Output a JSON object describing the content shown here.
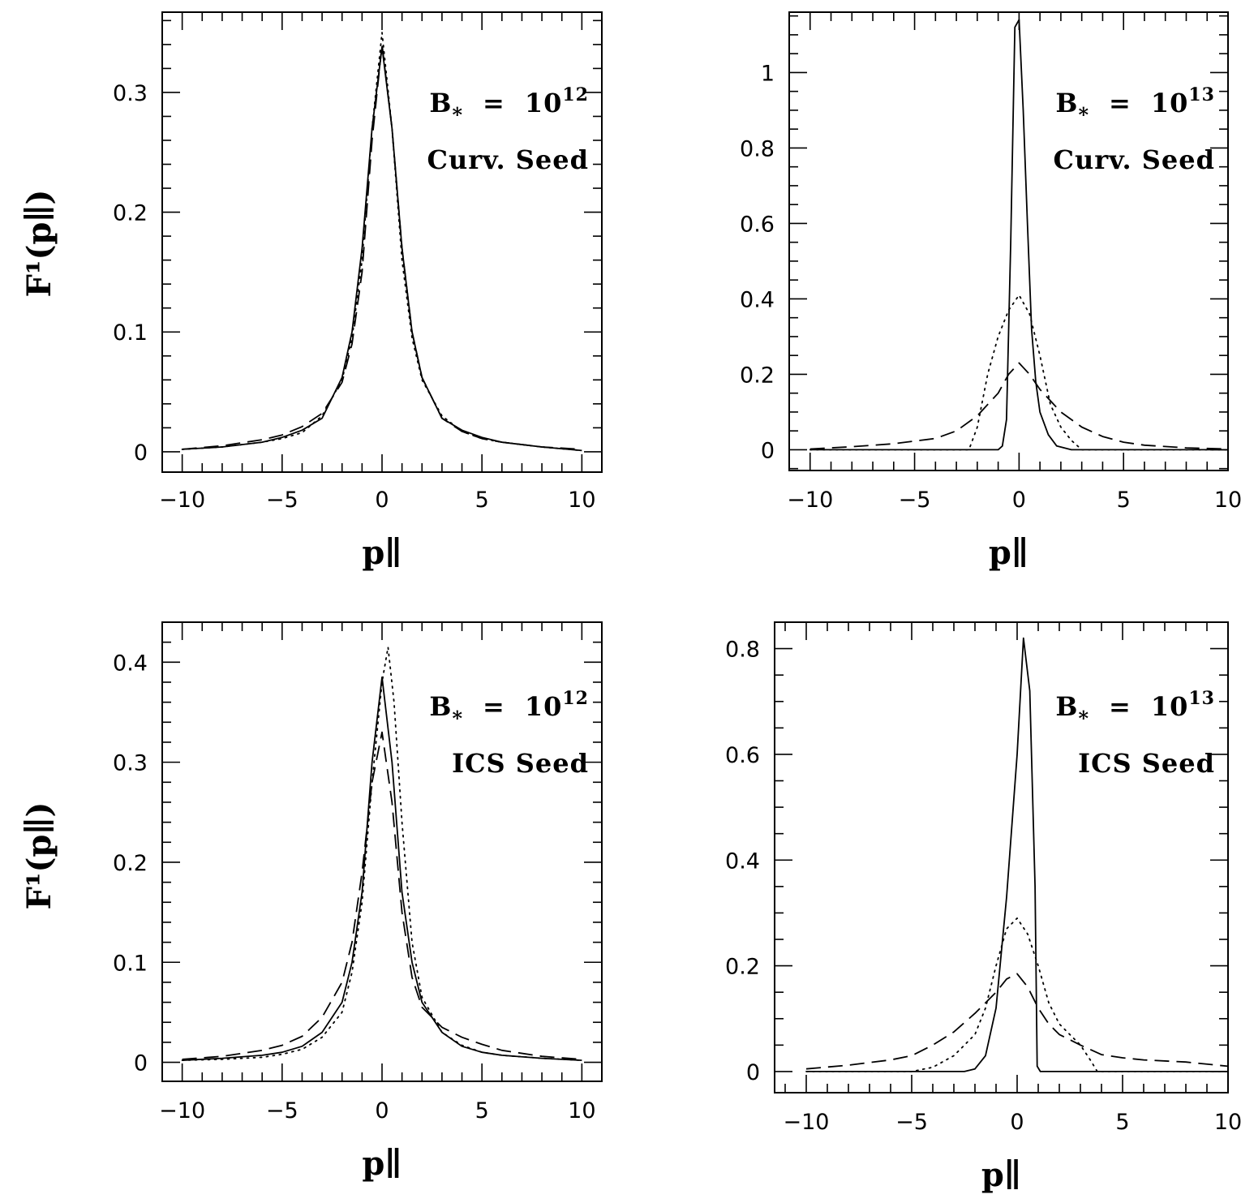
{
  "figure": {
    "ylabel": "F¹(p∥)",
    "xlabel": "p∥"
  },
  "chart_data": [
    {
      "type": "line",
      "panel": "top-left",
      "xlabel": "p∥",
      "ylabel": "F¹(p∥)",
      "xlim": [
        -11,
        11
      ],
      "ylim": [
        -0.017,
        0.367
      ],
      "xticks": [
        -10,
        -5,
        0,
        5,
        10
      ],
      "xtick_labels": [
        "−10",
        "−5",
        "0",
        "5",
        "10"
      ],
      "yticks": [
        0,
        0.1,
        0.2,
        0.3
      ],
      "ytick_labels": [
        "0",
        "0.1",
        "0.2",
        "0.3"
      ],
      "xminor": 1,
      "yminor": 0.02,
      "annotation": {
        "b_label": "B",
        "b_sub": "*",
        "equals": "=",
        "b_value": "10",
        "b_exp": "12",
        "seed": "Curv. Seed"
      },
      "series": [
        {
          "name": "solid",
          "style": "solid",
          "x": [
            -10,
            -8,
            -6,
            -5,
            -4,
            -3,
            -2,
            -1.5,
            -1,
            -0.5,
            0,
            0.5,
            1,
            1.5,
            2,
            3,
            4,
            5,
            6,
            8,
            10
          ],
          "y": [
            0.002,
            0.004,
            0.008,
            0.012,
            0.018,
            0.028,
            0.062,
            0.1,
            0.17,
            0.27,
            0.338,
            0.27,
            0.17,
            0.1,
            0.062,
            0.028,
            0.018,
            0.012,
            0.008,
            0.004,
            0.001
          ]
        },
        {
          "name": "dotted",
          "style": "dotted",
          "x": [
            -10,
            -8,
            -6,
            -5,
            -4,
            -3,
            -2,
            -1.5,
            -1,
            -0.5,
            0,
            0.5,
            1,
            1.5,
            2,
            3,
            4,
            5,
            6,
            8,
            10
          ],
          "y": [
            0.002,
            0.004,
            0.008,
            0.011,
            0.016,
            0.03,
            0.06,
            0.095,
            0.16,
            0.27,
            0.35,
            0.27,
            0.16,
            0.095,
            0.06,
            0.03,
            0.017,
            0.011,
            0.008,
            0.004,
            0.001
          ]
        },
        {
          "name": "dashed",
          "style": "dashed",
          "x": [
            -10,
            -8,
            -6,
            -5,
            -4,
            -3,
            -2,
            -1.5,
            -1,
            -0.5,
            0,
            0.5,
            1,
            1.5,
            2,
            3,
            4,
            5,
            6,
            8,
            10
          ],
          "y": [
            0.002,
            0.005,
            0.01,
            0.014,
            0.021,
            0.032,
            0.058,
            0.09,
            0.15,
            0.26,
            0.34,
            0.27,
            0.17,
            0.1,
            0.062,
            0.028,
            0.017,
            0.011,
            0.008,
            0.004,
            0.002
          ]
        }
      ]
    },
    {
      "type": "line",
      "panel": "top-right",
      "xlabel": "p∥",
      "ylabel": "",
      "xlim": [
        -11,
        10
      ],
      "ylim": [
        -0.055,
        1.16
      ],
      "xticks": [
        -10,
        -5,
        0,
        5,
        10
      ],
      "xtick_labels": [
        "−10",
        "−5",
        "0",
        "5",
        "10"
      ],
      "yticks": [
        0,
        0.2,
        0.4,
        0.6,
        0.8,
        1
      ],
      "ytick_labels": [
        "0",
        "0.2",
        "0.4",
        "0.6",
        "0.8",
        "1"
      ],
      "xminor": 1,
      "yminor": 0.05,
      "annotation": {
        "b_label": "B",
        "b_sub": "*",
        "equals": "=",
        "b_value": "10",
        "b_exp": "13",
        "seed": "Curv. Seed"
      },
      "series": [
        {
          "name": "solid",
          "style": "solid",
          "x": [
            -10,
            -1,
            -0.8,
            -0.6,
            -0.4,
            -0.2,
            0,
            0.2,
            0.4,
            0.6,
            0.8,
            1.0,
            1.4,
            1.8,
            2.5,
            10
          ],
          "y": [
            0,
            0,
            0.01,
            0.08,
            0.55,
            1.12,
            1.14,
            0.9,
            0.6,
            0.32,
            0.18,
            0.1,
            0.04,
            0.01,
            0,
            0
          ]
        },
        {
          "name": "dotted",
          "style": "dotted",
          "x": [
            -10,
            -2.4,
            -2,
            -1.5,
            -1,
            -0.5,
            0,
            0.5,
            1,
            1.5,
            2,
            2.5,
            3,
            10
          ],
          "y": [
            0,
            0,
            0.06,
            0.2,
            0.3,
            0.37,
            0.41,
            0.36,
            0.25,
            0.12,
            0.06,
            0.025,
            0,
            0
          ]
        },
        {
          "name": "dashed",
          "style": "dashed",
          "x": [
            -10,
            -8,
            -6,
            -4,
            -3,
            -2,
            -1.5,
            -1,
            -0.5,
            0,
            0.5,
            1,
            1.5,
            2,
            3,
            4,
            5,
            6,
            8,
            10
          ],
          "y": [
            0.002,
            0.008,
            0.016,
            0.03,
            0.05,
            0.09,
            0.12,
            0.15,
            0.2,
            0.23,
            0.2,
            0.16,
            0.13,
            0.1,
            0.06,
            0.035,
            0.02,
            0.012,
            0.005,
            0.002
          ]
        }
      ]
    },
    {
      "type": "line",
      "panel": "bottom-left",
      "xlabel": "p∥",
      "ylabel": "F¹(p∥)",
      "xlim": [
        -11,
        11
      ],
      "ylim": [
        -0.019,
        0.44
      ],
      "xticks": [
        -10,
        -5,
        0,
        5,
        10
      ],
      "xtick_labels": [
        "−10",
        "−5",
        "0",
        "5",
        "10"
      ],
      "yticks": [
        0,
        0.1,
        0.2,
        0.3,
        0.4
      ],
      "ytick_labels": [
        "0",
        "0.1",
        "0.2",
        "0.3",
        "0.4"
      ],
      "xminor": 1,
      "yminor": 0.02,
      "annotation": {
        "b_label": "B",
        "b_sub": "*",
        "equals": "=",
        "b_value": "10",
        "b_exp": "12",
        "seed": "ICS Seed"
      },
      "series": [
        {
          "name": "solid",
          "style": "solid",
          "x": [
            -10,
            -8,
            -6,
            -5,
            -4,
            -3,
            -2,
            -1.5,
            -1,
            -0.5,
            0,
            0.5,
            1,
            1.5,
            2,
            3,
            4,
            5,
            6,
            8,
            10
          ],
          "y": [
            0.002,
            0.004,
            0.007,
            0.01,
            0.016,
            0.03,
            0.06,
            0.1,
            0.17,
            0.3,
            0.385,
            0.3,
            0.17,
            0.1,
            0.06,
            0.03,
            0.016,
            0.01,
            0.007,
            0.004,
            0.002
          ]
        },
        {
          "name": "dotted",
          "style": "dotted",
          "x": [
            -10,
            -8,
            -6,
            -5,
            -4,
            -3,
            -2,
            -1.5,
            -1,
            -0.5,
            0,
            0.3,
            0.6,
            1,
            1.5,
            2,
            3,
            4,
            5,
            6,
            8,
            10
          ],
          "y": [
            0.002,
            0.003,
            0.005,
            0.008,
            0.013,
            0.025,
            0.05,
            0.09,
            0.16,
            0.28,
            0.38,
            0.415,
            0.36,
            0.24,
            0.12,
            0.065,
            0.03,
            0.017,
            0.01,
            0.007,
            0.004,
            0.002
          ]
        },
        {
          "name": "dashed",
          "style": "dashed",
          "x": [
            -10,
            -8,
            -6,
            -5,
            -4,
            -3,
            -2,
            -1.5,
            -1,
            -0.5,
            0,
            0.5,
            1,
            1.5,
            2,
            3,
            4,
            5,
            6,
            8,
            10
          ],
          "y": [
            0.003,
            0.006,
            0.012,
            0.017,
            0.026,
            0.045,
            0.08,
            0.12,
            0.19,
            0.28,
            0.33,
            0.26,
            0.15,
            0.085,
            0.055,
            0.035,
            0.025,
            0.018,
            0.012,
            0.006,
            0.003
          ]
        }
      ]
    },
    {
      "type": "line",
      "panel": "bottom-right",
      "xlabel": "p∥",
      "ylabel": "",
      "xlim": [
        -11.5,
        10
      ],
      "ylim": [
        -0.04,
        0.85
      ],
      "xticks": [
        -10,
        -5,
        0,
        5,
        10
      ],
      "xtick_labels": [
        "−10",
        "−5",
        "0",
        "5",
        "10"
      ],
      "yticks": [
        0,
        0.2,
        0.4,
        0.6,
        0.8
      ],
      "ytick_labels": [
        "0",
        "0.2",
        "0.4",
        "0.6",
        "0.8"
      ],
      "xminor": 1,
      "yminor": 0.05,
      "annotation": {
        "b_label": "B",
        "b_sub": "*",
        "equals": "=",
        "b_value": "10",
        "b_exp": "13",
        "seed": "ICS Seed"
      },
      "series": [
        {
          "name": "solid",
          "style": "solid",
          "x": [
            -10,
            -2.5,
            -2,
            -1.5,
            -1,
            -0.5,
            0,
            0.3,
            0.6,
            0.85,
            0.95,
            1.1,
            10
          ],
          "y": [
            0,
            0,
            0.005,
            0.03,
            0.12,
            0.33,
            0.6,
            0.82,
            0.72,
            0.35,
            0.01,
            0,
            0
          ]
        },
        {
          "name": "dotted",
          "style": "dotted",
          "x": [
            -10,
            -5,
            -4,
            -3,
            -2,
            -1.5,
            -1,
            -0.5,
            0,
            0.5,
            1,
            1.5,
            2,
            3,
            3.5,
            3.8,
            10
          ],
          "y": [
            0,
            0,
            0.008,
            0.03,
            0.07,
            0.12,
            0.2,
            0.27,
            0.29,
            0.26,
            0.2,
            0.13,
            0.09,
            0.05,
            0.02,
            0,
            0
          ]
        },
        {
          "name": "dashed",
          "style": "dashed",
          "x": [
            -10,
            -8,
            -6,
            -5,
            -4,
            -3,
            -2,
            -1,
            -0.5,
            0,
            0.5,
            1,
            1.5,
            2,
            3,
            4,
            5,
            6,
            8,
            10
          ],
          "y": [
            0.005,
            0.012,
            0.022,
            0.03,
            0.05,
            0.075,
            0.11,
            0.15,
            0.175,
            0.185,
            0.16,
            0.12,
            0.09,
            0.07,
            0.05,
            0.032,
            0.026,
            0.022,
            0.018,
            0.01
          ]
        }
      ]
    }
  ]
}
